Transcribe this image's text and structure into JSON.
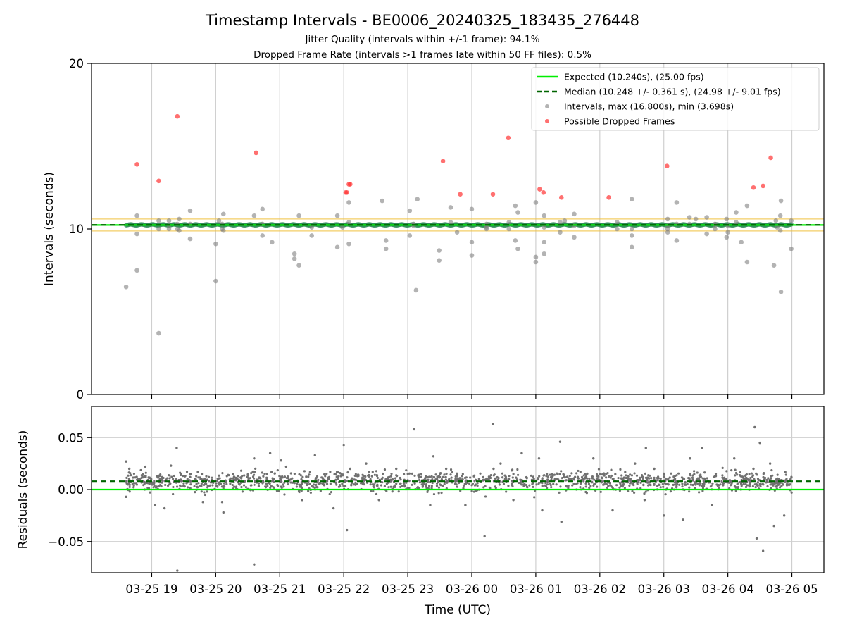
{
  "chart_data": [
    {
      "type": "scatter",
      "title": "Timestamp Intervals - BE0006_20240325_183435_276448",
      "subtitle_1": "Jitter Quality (intervals within +/-1 frame): 94.1%",
      "subtitle_2": "Dropped Frame Rate (intervals >1 frames late within 50 FF files): 0.5%",
      "ylabel": "Intervals (seconds)",
      "ylim": [
        0,
        20
      ],
      "yticks": [
        "0",
        "10",
        "20"
      ],
      "xlim": [
        18.06,
        29.5
      ],
      "x_units": "hours UTC from 2024-03-25 00:00",
      "grid": "x only",
      "legend_position": "upper right",
      "reference_lines": [
        {
          "name": "Expected (10.240s), (25.00 fps)",
          "y": 10.24,
          "style": "solid",
          "color": "#00ee00"
        },
        {
          "name": "Median (10.248 +/- 0.361 s), (24.98 +/- 9.01 fps)",
          "y": 10.248,
          "style": "dashed",
          "color": "#006400"
        }
      ],
      "band": {
        "y_low": 9.879,
        "y_high": 10.601,
        "color": "#f0c040"
      },
      "series": [
        {
          "name": "Intervals, max (16.800s), min (3.698s)",
          "color": "#808080",
          "x": [
            18.6,
            18.77,
            18.77,
            18.77,
            19.11,
            19.11,
            19.11,
            19.27,
            19.27,
            19.27,
            19.4,
            19.4,
            19.43,
            19.43,
            19.6,
            19.6,
            19.6,
            20.0,
            20.0,
            20.05,
            20.1,
            20.1,
            20.12,
            20.12,
            20.6,
            20.73,
            20.73,
            20.73,
            20.88,
            21.23,
            21.23,
            21.3,
            21.3,
            21.5,
            21.5,
            21.9,
            21.9,
            21.98,
            22.08,
            22.08,
            22.08,
            22.6,
            22.66,
            22.66,
            23.03,
            23.03,
            23.09,
            23.09,
            23.13,
            23.15,
            23.49,
            23.49,
            23.67,
            23.67,
            23.77,
            24.0,
            24.0,
            24.0,
            24.23,
            24.23,
            24.23,
            24.23,
            24.58,
            24.58,
            24.68,
            24.68,
            24.72,
            24.72,
            25.0,
            25.0,
            25.0,
            25.13,
            25.13,
            25.13,
            25.13,
            25.38,
            25.38,
            25.45,
            25.6,
            25.6,
            25.6,
            26.27,
            26.27,
            26.5,
            26.5,
            26.5,
            26.5,
            27.06,
            27.06,
            27.06,
            27.06,
            27.2,
            27.2,
            27.2,
            27.4,
            27.4,
            27.5,
            27.67,
            27.67,
            27.8,
            27.8,
            27.8,
            27.98,
            27.98,
            28.0,
            28.0,
            28.13,
            28.13,
            28.21,
            28.3,
            28.3,
            28.72,
            28.75,
            28.77,
            28.82,
            28.82,
            28.83,
            28.83,
            28.99,
            28.99
          ],
          "y": [
            6.5,
            10.8,
            9.7,
            7.5,
            10.0,
            10.5,
            3.698,
            10.5,
            10.0,
            10.2,
            10.0,
            10.3,
            10.6,
            9.9,
            11.1,
            9.4,
            10.3,
            9.1,
            6.85,
            10.5,
            10.0,
            10.3,
            9.9,
            10.9,
            10.8,
            9.6,
            10.3,
            11.2,
            9.2,
            8.2,
            8.5,
            10.8,
            7.8,
            9.6,
            10.1,
            10.8,
            8.9,
            10.1,
            11.6,
            9.1,
            10.4,
            11.7,
            9.3,
            8.8,
            11.1,
            9.6,
            10.2,
            10.3,
            6.3,
            11.8,
            8.7,
            8.1,
            11.3,
            10.4,
            9.8,
            9.2,
            8.4,
            11.2,
            10.1,
            10.0,
            10.2,
            10.3,
            10.4,
            10.0,
            11.4,
            9.3,
            8.8,
            11.0,
            8.0,
            8.3,
            11.6,
            9.2,
            8.5,
            10.8,
            10.1,
            10.4,
            9.8,
            10.5,
            10.9,
            9.5,
            10.2,
            10.0,
            10.4,
            11.8,
            9.6,
            8.9,
            10.0,
            10.6,
            9.8,
            10.0,
            10.2,
            10.3,
            11.6,
            9.3,
            10.3,
            10.7,
            10.6,
            10.7,
            9.7,
            10.2,
            10.0,
            10.3,
            9.5,
            10.6,
            9.8,
            10.2,
            11.0,
            10.4,
            9.2,
            11.4,
            8.0,
            7.8,
            10.5,
            10.1,
            10.8,
            9.9,
            11.7,
            6.2,
            8.8,
            10.5
          ]
        },
        {
          "name": "Possible Dropped Frames",
          "color": "#ff5555",
          "x": [
            18.77,
            19.11,
            19.4,
            20.63,
            22.03,
            22.05,
            22.08,
            22.1,
            23.55,
            23.82,
            24.33,
            24.57,
            25.06,
            25.12,
            25.4,
            26.14,
            27.05,
            28.4,
            28.55,
            28.67
          ],
          "y": [
            13.9,
            12.9,
            16.8,
            14.6,
            12.2,
            12.2,
            12.7,
            12.7,
            14.1,
            12.1,
            12.1,
            15.5,
            12.4,
            12.2,
            11.9,
            11.9,
            13.8,
            12.5,
            12.6,
            14.3
          ]
        }
      ]
    },
    {
      "type": "scatter",
      "ylabel": "Residuals (seconds)",
      "xlabel": "Time (UTC)",
      "ylim": [
        -0.08,
        0.08
      ],
      "yticks": [
        "−0.05",
        "0.00",
        "0.05"
      ],
      "xlim": [
        18.06,
        29.5
      ],
      "xticks": [
        "03-25 19",
        "03-25 20",
        "03-25 21",
        "03-25 22",
        "03-25 23",
        "03-26 00",
        "03-26 01",
        "03-26 02",
        "03-26 03",
        "03-26 04",
        "03-26 05"
      ],
      "grid": "both",
      "reference_lines": [
        {
          "name": "Expected",
          "y": 0.0,
          "style": "solid",
          "color": "#00ee00"
        },
        {
          "name": "Median",
          "y": 0.008,
          "style": "dashed",
          "color": "#006400"
        }
      ],
      "series": [
        {
          "name": "residuals",
          "color": "#707070",
          "x": [
            18.6,
            18.6,
            18.65,
            18.9,
            19.05,
            19.2,
            19.3,
            19.39,
            19.4,
            19.6,
            19.8,
            20.1,
            20.12,
            20.27,
            20.6,
            20.6,
            20.85,
            21.02,
            21.1,
            21.35,
            21.55,
            21.84,
            22.0,
            22.05,
            22.1,
            22.35,
            22.55,
            22.82,
            23.1,
            23.35,
            23.4,
            23.6,
            23.9,
            24.2,
            24.33,
            24.34,
            24.45,
            24.65,
            24.78,
            25.05,
            25.1,
            25.3,
            25.38,
            25.4,
            25.9,
            26.2,
            26.55,
            26.7,
            26.72,
            26.85,
            27.0,
            27.3,
            27.41,
            27.6,
            27.75,
            28.1,
            28.4,
            28.42,
            28.45,
            28.5,
            28.55,
            28.66,
            28.72,
            28.88
          ],
          "y": [
            0.027,
            -0.007,
            0.02,
            0.022,
            -0.015,
            -0.018,
            0.023,
            0.04,
            -0.078,
            0.012,
            -0.012,
            -0.012,
            -0.022,
            0.015,
            -0.072,
            0.03,
            0.035,
            0.028,
            0.022,
            -0.01,
            0.033,
            -0.018,
            0.043,
            -0.039,
            0.02,
            0.025,
            -0.01,
            0.02,
            0.058,
            -0.015,
            0.032,
            0.02,
            -0.015,
            -0.045,
            0.063,
            0.02,
            0.025,
            -0.01,
            0.035,
            0.03,
            -0.02,
            0.01,
            0.046,
            -0.031,
            0.03,
            -0.02,
            0.025,
            -0.01,
            0.04,
            0.02,
            -0.025,
            -0.029,
            0.03,
            0.04,
            -0.015,
            0.03,
            0.02,
            0.06,
            -0.047,
            0.045,
            -0.059,
            0.025,
            -0.035,
            -0.025
          ]
        }
      ]
    }
  ]
}
